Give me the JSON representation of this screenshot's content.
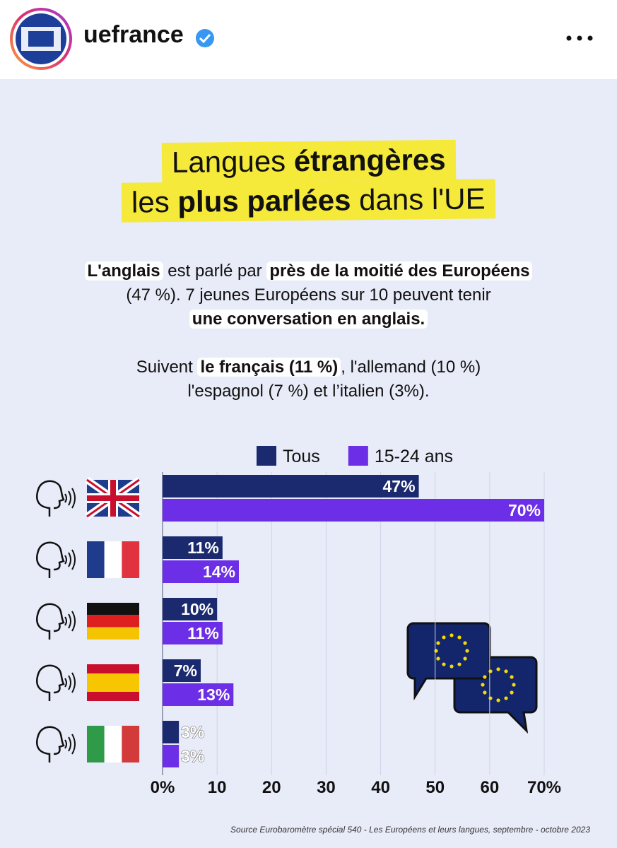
{
  "header": {
    "username": "uefrance"
  },
  "chart_data": {
    "type": "bar",
    "orientation": "horizontal",
    "title": [
      [
        {
          "text": "Langues "
        },
        {
          "text": "étrangères",
          "bold": true
        }
      ],
      [
        {
          "text": "les "
        },
        {
          "text": "plus parlées",
          "bold": true
        },
        {
          "text": " dans l'UE"
        }
      ]
    ],
    "paragraphs": [
      [
        [
          {
            "text": "L'anglais",
            "highlight": true
          },
          {
            "text": " est parlé par "
          },
          {
            "text": "près de la moitié des Européens",
            "highlight": true
          }
        ],
        [
          {
            "text": "(47 %). 7 jeunes Européens sur 10 peuvent tenir"
          }
        ],
        [
          {
            "text": "une conversation en anglais.",
            "highlight": true
          }
        ]
      ],
      [
        [
          {
            "text": "Suivent "
          },
          {
            "text": "le français (11 %)",
            "highlight": true
          },
          {
            "text": ", l'allemand (10 %)"
          }
        ],
        [
          {
            "text": "l'espagnol (7 %) et l’italien (3%)."
          }
        ]
      ]
    ],
    "categories": [
      null,
      null,
      null,
      null,
      null
    ],
    "series": [
      {
        "name": "Tous",
        "color": "#1b2a6e",
        "values": [
          47,
          11,
          10,
          7,
          3
        ],
        "value_labels": [
          "47%",
          "11%",
          "10%",
          "7%",
          "3%"
        ]
      },
      {
        "name": "15-24 ans",
        "color": "#6c2ee6",
        "values": [
          70,
          14,
          11,
          13,
          3
        ],
        "value_labels": [
          "70%",
          "14%",
          "11%",
          "13%",
          "3%"
        ]
      }
    ],
    "xlim": [
      0,
      70
    ],
    "xticks": [
      {
        "value": 0,
        "label": "0%"
      },
      10,
      20,
      30,
      40,
      50,
      60,
      {
        "value": 70,
        "label": "70%"
      }
    ],
    "grid": true,
    "legend": "top",
    "source": "Source Eurobaromètre spécial 540 - Les Européens et leurs langues, septembre - octobre 2023"
  }
}
